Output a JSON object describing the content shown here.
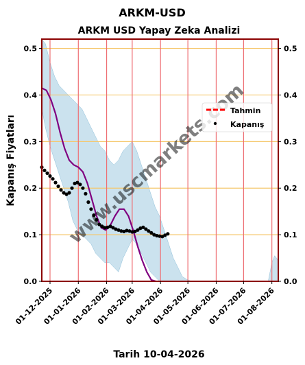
{
  "figure": {
    "suptitle": "ARKM-USD",
    "footer": "Tarih 10-04-2026",
    "watermark": "www.uscmarkets.com"
  },
  "chart_data": {
    "type": "line",
    "title": "ARKM USD Yapay Zeka Analizi",
    "xlabel": "",
    "ylabel": "Kapanış Fiyatları",
    "xlim": [
      "2025-11-22",
      "2026-08-08"
    ],
    "ylim": [
      0,
      0.52
    ],
    "x_ticks": [
      "01-12-2025",
      "01-01-2026",
      "01-02-2026",
      "01-03-2026",
      "01-04-2026",
      "01-05-2026",
      "01-06-2026",
      "01-07-2026",
      "01-08-2026"
    ],
    "y_ticks": [
      0.0,
      0.1,
      0.2,
      0.3,
      0.4,
      0.5
    ],
    "y_tick_labels": [
      "0.0",
      "0.1",
      "0.2",
      "0.3",
      "0.4",
      "0.5"
    ],
    "grid": "horizontal and vertical",
    "legend_position": "right",
    "legend": [
      {
        "label": "Tahmin",
        "color": "#ff0000",
        "style": "dashed"
      },
      {
        "label": "Kapanış",
        "color": "#000000",
        "style": "dot"
      }
    ],
    "colors": {
      "band": "#a9cfe3",
      "trend": "#800080",
      "frame": "#8b0000",
      "hgrid": "#f5c76b",
      "vgrid": "#ee6e73"
    },
    "band": {
      "x": [
        "2025-11-22",
        "2025-11-26",
        "2025-12-01",
        "2025-12-06",
        "2025-12-11",
        "2025-12-16",
        "2025-12-21",
        "2025-12-26",
        "2025-12-31",
        "2026-01-05",
        "2026-01-10",
        "2026-01-15",
        "2026-01-20",
        "2026-01-25",
        "2026-01-30",
        "2026-02-04",
        "2026-02-09",
        "2026-02-14",
        "2026-02-19",
        "2026-02-24",
        "2026-03-01",
        "2026-03-06",
        "2026-03-11",
        "2026-03-16",
        "2026-03-21",
        "2026-03-26",
        "2026-03-31",
        "2026-04-05",
        "2026-04-10",
        "2026-04-15",
        "2026-04-20",
        "2026-04-25",
        "2026-04-30",
        "2026-05-05"
      ],
      "upper": [
        0.52,
        0.51,
        0.47,
        0.44,
        0.42,
        0.41,
        0.4,
        0.39,
        0.38,
        0.37,
        0.35,
        0.33,
        0.31,
        0.29,
        0.28,
        0.26,
        0.25,
        0.26,
        0.28,
        0.29,
        0.3,
        0.28,
        0.25,
        0.22,
        0.19,
        0.16,
        0.14,
        0.11,
        0.08,
        0.05,
        0.03,
        0.01,
        0.004,
        0.0
      ],
      "lower": [
        0.37,
        0.33,
        0.29,
        0.26,
        0.23,
        0.2,
        0.17,
        0.13,
        0.11,
        0.1,
        0.09,
        0.08,
        0.06,
        0.05,
        0.04,
        0.04,
        0.03,
        0.02,
        0.05,
        0.07,
        0.09,
        0.08,
        0.06,
        0.04,
        0.02,
        0.01,
        0.0,
        0.0,
        0.0,
        0.0,
        0.0,
        0.0,
        0.0,
        0.0
      ]
    },
    "band_tail": {
      "x": [
        "2026-07-28",
        "2026-08-01",
        "2026-08-04",
        "2026-08-08"
      ],
      "upper": [
        0.0,
        0.04,
        0.055,
        0.045
      ],
      "lower": [
        0.0,
        0.0,
        0.0,
        0.0
      ]
    },
    "series": [
      {
        "name": "Tahmin",
        "style": "line",
        "x": [
          "2025-11-22",
          "2025-11-27",
          "2025-12-02",
          "2025-12-07",
          "2025-12-12",
          "2025-12-17",
          "2025-12-22",
          "2025-12-27",
          "2026-01-01",
          "2026-01-06",
          "2026-01-11",
          "2026-01-16",
          "2026-01-21",
          "2026-01-26",
          "2026-01-31",
          "2026-02-05",
          "2026-02-10",
          "2026-02-15",
          "2026-02-20",
          "2026-02-25",
          "2026-03-02",
          "2026-03-07",
          "2026-03-12",
          "2026-03-17",
          "2026-03-22",
          "2026-03-27"
        ],
        "y": [
          0.415,
          0.41,
          0.39,
          0.36,
          0.32,
          0.285,
          0.26,
          0.25,
          0.245,
          0.235,
          0.21,
          0.175,
          0.14,
          0.115,
          0.11,
          0.12,
          0.14,
          0.155,
          0.155,
          0.14,
          0.11,
          0.075,
          0.045,
          0.02,
          0.003,
          0.0
        ]
      },
      {
        "name": "Kapanış",
        "style": "dots",
        "x": [
          "2025-11-22",
          "2025-11-25",
          "2025-11-28",
          "2025-12-01",
          "2025-12-04",
          "2025-12-07",
          "2025-12-10",
          "2025-12-13",
          "2025-12-16",
          "2025-12-19",
          "2025-12-22",
          "2025-12-25",
          "2025-12-28",
          "2025-12-31",
          "2026-01-03",
          "2026-01-06",
          "2026-01-09",
          "2026-01-12",
          "2026-01-15",
          "2026-01-18",
          "2026-01-21",
          "2026-01-24",
          "2026-01-27",
          "2026-01-30",
          "2026-02-02",
          "2026-02-05",
          "2026-02-08",
          "2026-02-11",
          "2026-02-14",
          "2026-02-17",
          "2026-02-20",
          "2026-02-23",
          "2026-02-26",
          "2026-03-01",
          "2026-03-04",
          "2026-03-07",
          "2026-03-10",
          "2026-03-13",
          "2026-03-16",
          "2026-03-19",
          "2026-03-22",
          "2026-03-25",
          "2026-03-28",
          "2026-03-31",
          "2026-04-03",
          "2026-04-06",
          "2026-04-09"
        ],
        "y": [
          0.245,
          0.238,
          0.232,
          0.226,
          0.22,
          0.212,
          0.204,
          0.196,
          0.19,
          0.187,
          0.19,
          0.2,
          0.21,
          0.212,
          0.208,
          0.2,
          0.188,
          0.17,
          0.155,
          0.142,
          0.132,
          0.122,
          0.118,
          0.115,
          0.116,
          0.118,
          0.115,
          0.112,
          0.11,
          0.108,
          0.107,
          0.109,
          0.108,
          0.106,
          0.107,
          0.11,
          0.114,
          0.116,
          0.112,
          0.108,
          0.104,
          0.1,
          0.098,
          0.097,
          0.096,
          0.099,
          0.102
        ]
      }
    ]
  }
}
